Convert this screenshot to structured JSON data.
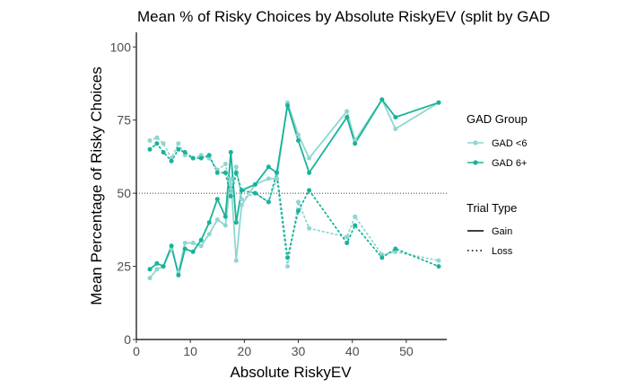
{
  "chart_data": {
    "type": "line",
    "title": "Mean % of Risky Choices by Absolute RiskyEV (split by GAD",
    "xlabel": "Absolute RiskyEV",
    "ylabel": "Mean Percentage of Risky Choices",
    "xlim": [
      0,
      57.5
    ],
    "ylim": [
      0,
      105
    ],
    "x_ticks": [
      0,
      10,
      20,
      30,
      40,
      50
    ],
    "y_ticks": [
      0,
      25,
      50,
      75,
      100
    ],
    "reference_line": 50,
    "grid": false,
    "legend_position": "right",
    "legend": {
      "group_title": "GAD Group",
      "group_entries": [
        {
          "label": "GAD <6",
          "color": "#8fd6d0"
        },
        {
          "label": "GAD 6+",
          "color": "#18b39a"
        }
      ],
      "type_title": "Trial Type",
      "type_entries": [
        {
          "label": "Gain",
          "style": "solid"
        },
        {
          "label": "Loss",
          "style": "dotted"
        }
      ]
    },
    "series": [
      {
        "name": "GAD <6 - Gain",
        "color": "#8fd6d0",
        "style": "solid",
        "x": [
          2.5,
          3.8,
          5,
          6.5,
          7.8,
          9,
          10.5,
          12,
          13.5,
          15,
          16.5,
          17.5,
          18.5,
          19.5,
          22,
          24.5,
          26,
          28,
          30,
          32,
          39,
          40.5,
          45.5,
          48,
          56
        ],
        "y": [
          21,
          24,
          25,
          31,
          23,
          33,
          33,
          32,
          36,
          41,
          39,
          55,
          27,
          46,
          53,
          55,
          55,
          81,
          70,
          62,
          78,
          68,
          82,
          72,
          81
        ]
      },
      {
        "name": "GAD 6+ - Gain",
        "color": "#18b39a",
        "style": "solid",
        "x": [
          2.5,
          3.8,
          5,
          6.5,
          7.8,
          9,
          10.5,
          12,
          13.5,
          15,
          16.5,
          17.5,
          18.5,
          19.5,
          22,
          24.5,
          26,
          28,
          30,
          32,
          39,
          40.5,
          45.5,
          48,
          56
        ],
        "y": [
          24,
          26,
          25,
          32,
          22,
          31,
          30,
          34,
          40,
          48,
          42,
          64,
          40,
          51,
          53,
          59,
          57,
          80,
          68,
          57,
          76,
          67,
          82,
          76,
          81
        ]
      },
      {
        "name": "GAD <6 - Loss",
        "color": "#8fd6d0",
        "style": "dotted",
        "x": [
          2.5,
          3.8,
          5,
          6.5,
          7.8,
          9,
          10.5,
          12,
          13.5,
          15,
          16.5,
          17.5,
          18.5,
          19.5,
          22,
          24.5,
          26,
          28,
          30,
          32,
          39,
          40.5,
          45.5,
          48,
          56
        ],
        "y": [
          68,
          69,
          67,
          62,
          67,
          63,
          62,
          63,
          62,
          58,
          60,
          50,
          59,
          48,
          50,
          47,
          55,
          25,
          47,
          38,
          35,
          42,
          29,
          30,
          27
        ]
      },
      {
        "name": "GAD 6+ - Loss",
        "color": "#18b39a",
        "style": "dotted",
        "x": [
          2.5,
          3.8,
          5,
          6.5,
          7.8,
          9,
          10.5,
          12,
          13.5,
          15,
          16.5,
          17.5,
          18.5,
          19.5,
          22,
          24.5,
          26,
          28,
          30,
          32,
          39,
          40.5,
          45.5,
          48,
          56
        ],
        "y": [
          65,
          67,
          64,
          61,
          65,
          64,
          62,
          62,
          63,
          57,
          57,
          49,
          57,
          51,
          50,
          47,
          57,
          28,
          44,
          51,
          33,
          39,
          28,
          31,
          25
        ]
      }
    ]
  }
}
